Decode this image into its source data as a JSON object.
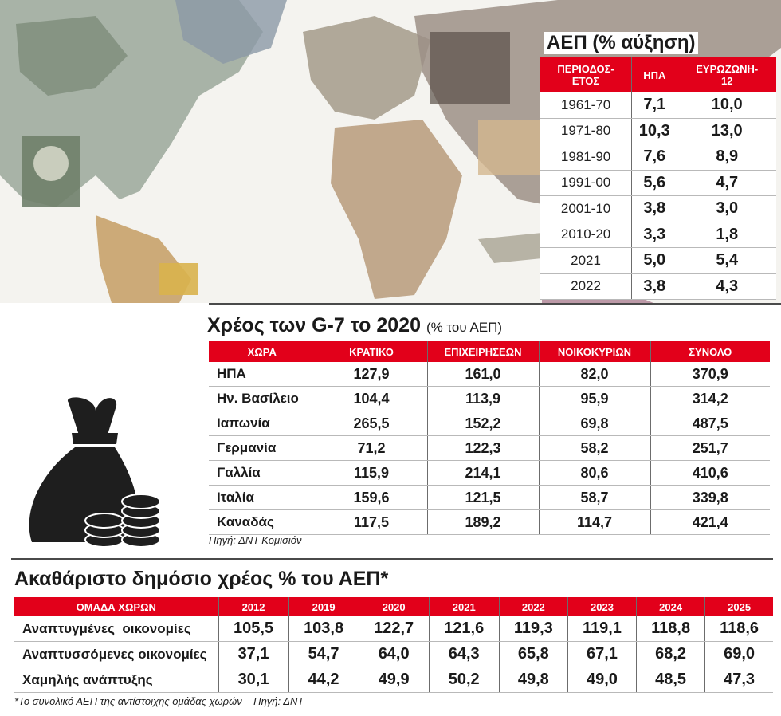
{
  "gdp_growth": {
    "title": "ΑΕΠ (% αύξηση)",
    "headers": [
      "ΠΕΡΙΟΔΟΣ-\nΕΤΟΣ",
      "ΗΠΑ",
      "ΕΥΡΩΖΩΝΗ-\n12"
    ],
    "rows": [
      [
        "1961-70",
        "7,1",
        "10,0"
      ],
      [
        "1971-80",
        "10,3",
        "13,0"
      ],
      [
        "1981-90",
        "7,6",
        "8,9"
      ],
      [
        "1991-00",
        "5,6",
        "4,7"
      ],
      [
        "2001-10",
        "3,8",
        "3,0"
      ],
      [
        "2010-20",
        "3,3",
        "1,8"
      ],
      [
        "2021",
        "5,0",
        "5,4"
      ],
      [
        "2022",
        "3,8",
        "4,3"
      ]
    ]
  },
  "g7_debt": {
    "title": "Χρέος των G-7 το 2020",
    "subtitle": "(% του ΑΕΠ)",
    "headers": [
      "ΧΩΡΑ",
      "ΚΡΑΤΙΚΟ",
      "ΕΠΙΧΕΙΡΗΣΕΩΝ",
      "ΝΟΙΚΟΚΥΡΙΩΝ",
      "ΣΥΝΟΛΟ"
    ],
    "rows": [
      [
        "ΗΠΑ",
        "127,9",
        "161,0",
        "82,0",
        "370,9"
      ],
      [
        "Ην. Βασίλειο",
        "104,4",
        "113,9",
        "95,9",
        "314,2"
      ],
      [
        "Ιαπωνία",
        "265,5",
        "152,2",
        "69,8",
        "487,5"
      ],
      [
        "Γερμανία",
        "71,2",
        "122,3",
        "58,2",
        "251,7"
      ],
      [
        "Γαλλία",
        "115,9",
        "214,1",
        "80,6",
        "410,6"
      ],
      [
        "Ιταλία",
        "159,6",
        "121,5",
        "58,7",
        "339,8"
      ],
      [
        "Καναδάς",
        "117,5",
        "189,2",
        "114,7",
        "421,4"
      ]
    ],
    "source": "Πηγή: ΔΝΤ-Κομισιόν"
  },
  "public_debt": {
    "title": "Ακαθάριστο δημόσιο χρέος % του ΑΕΠ*",
    "headers": [
      "ΟΜΑΔΑ ΧΩΡΩΝ",
      "2012",
      "2019",
      "2020",
      "2021",
      "2022",
      "2023",
      "2024",
      "2025"
    ],
    "rows": [
      [
        "Αναπτυγμένες  οικονομίες",
        "105,5",
        "103,8",
        "122,7",
        "121,6",
        "119,3",
        "119,1",
        "118,8",
        "118,6"
      ],
      [
        "Αναπτυσσόμενες οικονομίες",
        "37,1",
        "54,7",
        "64,0",
        "64,3",
        "65,8",
        "67,1",
        "68,2",
        "69,0"
      ],
      [
        "Χαμηλής ανάπτυξης",
        "30,1",
        "44,2",
        "49,9",
        "50,2",
        "49,8",
        "49,0",
        "48,5",
        "47,3"
      ]
    ],
    "footnote": "*Το συνολικό ΑΕΠ της αντίστοιχης ομάδας χωρών – Πηγή: ΔΝΤ"
  },
  "colors": {
    "header_red": "#e2001a",
    "text": "#1a1a1a",
    "divider": "#4a4a4a"
  },
  "icons": [
    "money-bag-icon",
    "coin-stack-icon",
    "world-map-banknotes-illustration"
  ],
  "chart_data": [
    {
      "type": "table",
      "title": "ΑΕΠ (% αύξηση)",
      "columns": [
        "ΠΕΡΙΟΔΟΣ-ΕΤΟΣ",
        "ΗΠΑ",
        "ΕΥΡΩΖΩΝΗ-12"
      ],
      "categories": [
        "1961-70",
        "1971-80",
        "1981-90",
        "1991-00",
        "2001-10",
        "2010-20",
        "2021",
        "2022"
      ],
      "series": [
        {
          "name": "ΗΠΑ",
          "values": [
            7.1,
            10.3,
            7.6,
            5.6,
            3.8,
            3.3,
            5.0,
            3.8
          ]
        },
        {
          "name": "ΕΥΡΩΖΩΝΗ-12",
          "values": [
            10.0,
            13.0,
            8.9,
            4.7,
            3.0,
            1.8,
            5.4,
            4.3
          ]
        }
      ]
    },
    {
      "type": "table",
      "title": "Χρέος των G-7 το 2020",
      "subtitle": "(% του ΑΕΠ)",
      "categories": [
        "ΗΠΑ",
        "Ην. Βασίλειο",
        "Ιαπωνία",
        "Γερμανία",
        "Γαλλία",
        "Ιταλία",
        "Καναδάς"
      ],
      "series": [
        {
          "name": "ΚΡΑΤΙΚΟ",
          "values": [
            127.9,
            104.4,
            265.5,
            71.2,
            115.9,
            159.6,
            117.5
          ]
        },
        {
          "name": "ΕΠΙΧΕΙΡΗΣΕΩΝ",
          "values": [
            161.0,
            113.9,
            152.2,
            122.3,
            214.1,
            121.5,
            189.2
          ]
        },
        {
          "name": "ΝΟΙΚΟΚΥΡΙΩΝ",
          "values": [
            82.0,
            95.9,
            69.8,
            58.2,
            80.6,
            58.7,
            114.7
          ]
        },
        {
          "name": "ΣΥΝΟΛΟ",
          "values": [
            370.9,
            314.2,
            487.5,
            251.7,
            410.6,
            339.8,
            421.4
          ]
        }
      ]
    },
    {
      "type": "table",
      "title": "Ακαθάριστο δημόσιο χρέος % του ΑΕΠ*",
      "categories": [
        "2012",
        "2019",
        "2020",
        "2021",
        "2022",
        "2023",
        "2024",
        "2025"
      ],
      "series": [
        {
          "name": "Αναπτυγμένες  οικονομίες",
          "values": [
            105.5,
            103.8,
            122.7,
            121.6,
            119.3,
            119.1,
            118.8,
            118.6
          ]
        },
        {
          "name": "Αναπτυσσόμενες οικονομίες",
          "values": [
            37.1,
            54.7,
            64.0,
            64.3,
            65.8,
            67.1,
            68.2,
            69.0
          ]
        },
        {
          "name": "Χαμηλής ανάπτυξης",
          "values": [
            30.1,
            44.2,
            49.9,
            50.2,
            49.8,
            49.0,
            48.5,
            47.3
          ]
        }
      ]
    }
  ]
}
